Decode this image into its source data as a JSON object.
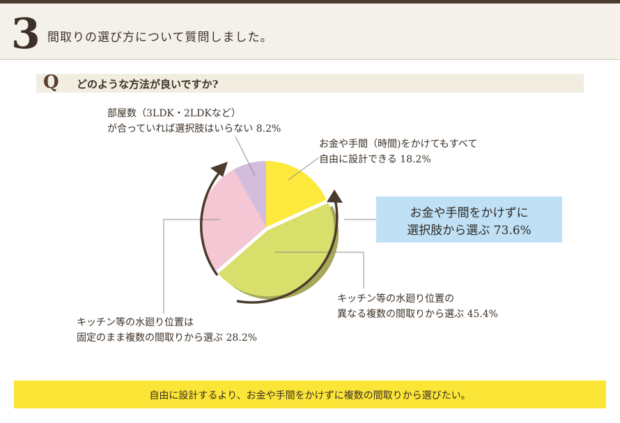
{
  "header": {
    "number": "3",
    "title": "間取りの選び方について質問しました。"
  },
  "question": {
    "letter": "Q",
    "text": "どのような方法が良いですか?"
  },
  "callout": {
    "line1": "お金や手間をかけずに",
    "line2": "選択肢から選ぶ 73.6%"
  },
  "footer": {
    "text": "自由に設計するより、お金や手間をかけずに複数の間取りから選びたい。"
  },
  "chart_data": {
    "type": "pie",
    "title": "",
    "slices": [
      {
        "label_lines": [
          "お金や手間（時間)をかけてもすべて",
          "自由に設計できる 18.2%"
        ],
        "value": 18.2,
        "color": "#fde83c"
      },
      {
        "label_lines": [
          "キッチン等の水廻り位置の",
          "異なる複数の間取りから選ぶ 45.4%"
        ],
        "value": 45.4,
        "color": "#d8e06b",
        "shadow": "#a7a75a"
      },
      {
        "label_lines": [
          "キッチン等の水廻り位置は",
          "固定のまま複数の間取りから選ぶ 28.2%"
        ],
        "value": 28.2,
        "color": "#f5c6d4"
      },
      {
        "label_lines": [
          "部屋数（3LDK・2LDKなど）",
          "が合っていれば選択肢はいらない 8.2%"
        ],
        "value": 8.2,
        "color": "#d3bcdc"
      }
    ],
    "grouped_total": {
      "value": 73.6,
      "slices": [
        1,
        2
      ]
    }
  }
}
